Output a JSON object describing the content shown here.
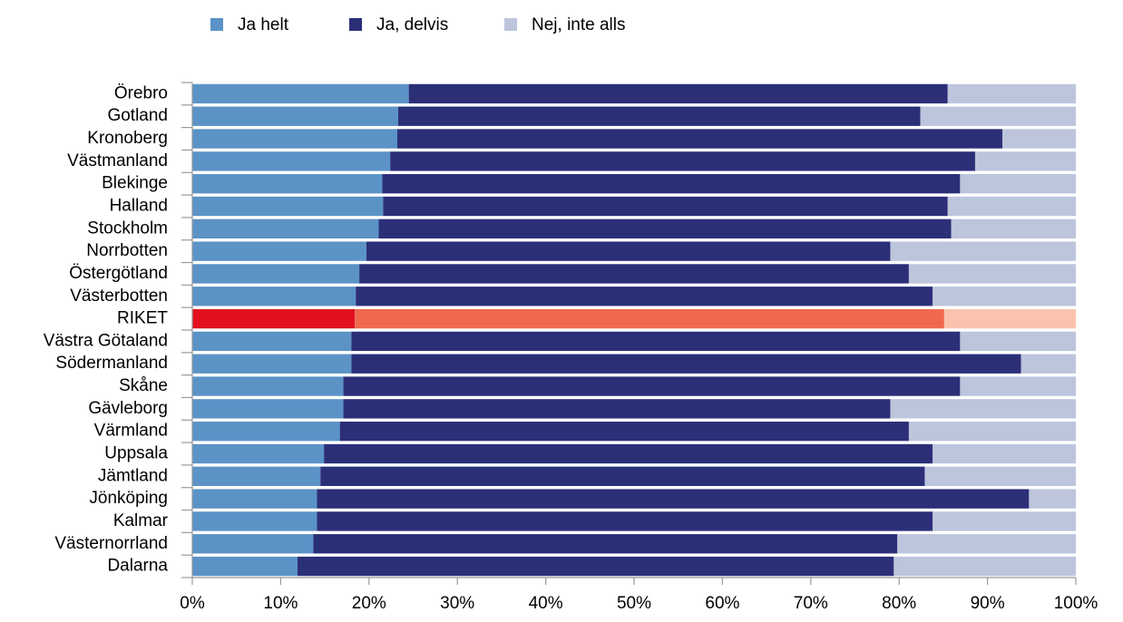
{
  "chart_data": {
    "type": "stacked_barh",
    "categories": [
      "Örebro",
      "Gotland",
      "Kronoberg",
      "Västmanland",
      "Blekinge",
      "Halland",
      "Stockholm",
      "Norrbotten",
      "Östergötland",
      "Västerbotten",
      "RIKET",
      "Västra Götaland",
      "Södermanland",
      "Skåne",
      "Gävleborg",
      "Värmland",
      "Uppsala",
      "Jämtland",
      "Jönköping",
      "Kalmar",
      "Västernorrland",
      "Dalarna"
    ],
    "series": [
      {
        "name": "Ja helt",
        "color": "#5b93c7",
        "highlight_color": "#e3101f",
        "values": [
          24.5,
          23.3,
          23.2,
          22.4,
          21.5,
          21.6,
          21.1,
          19.7,
          18.9,
          18.5,
          18.4,
          18.0,
          18.0,
          17.1,
          17.1,
          16.7,
          14.9,
          14.5,
          14.1,
          14.1,
          13.7,
          11.9
        ]
      },
      {
        "name": "Ja, delvis",
        "color": "#2b2f78",
        "highlight_color": "#f0694f",
        "values": [
          61.0,
          59.1,
          68.5,
          66.2,
          65.4,
          63.9,
          64.8,
          59.3,
          62.2,
          65.3,
          66.7,
          68.9,
          75.8,
          69.8,
          61.9,
          64.4,
          68.9,
          68.4,
          80.6,
          69.7,
          66.1,
          67.5
        ]
      },
      {
        "name": "Nej, inte alls",
        "color": "#bcc5dc",
        "highlight_color": "#f9c3ae",
        "values": [
          14.5,
          17.6,
          8.3,
          11.4,
          13.1,
          14.5,
          14.1,
          21.0,
          18.9,
          16.2,
          14.9,
          13.1,
          6.2,
          13.1,
          21.0,
          18.9,
          16.2,
          17.1,
          5.3,
          16.2,
          20.2,
          20.6
        ]
      }
    ],
    "highlight_category": "RIKET",
    "xlim": [
      0,
      100
    ],
    "xticks": [
      {
        "value": 0,
        "label": "0%"
      },
      {
        "value": 10,
        "label": "10%"
      },
      {
        "value": 20,
        "label": "20%"
      },
      {
        "value": 30,
        "label": "30%"
      },
      {
        "value": 40,
        "label": "40%"
      },
      {
        "value": 50,
        "label": "50%"
      },
      {
        "value": 60,
        "label": "60%"
      },
      {
        "value": 70,
        "label": "70%"
      },
      {
        "value": 80,
        "label": "80%"
      },
      {
        "value": 90,
        "label": "90%"
      },
      {
        "value": 100,
        "label": "100%"
      }
    ],
    "legend": "top",
    "grid": false
  }
}
